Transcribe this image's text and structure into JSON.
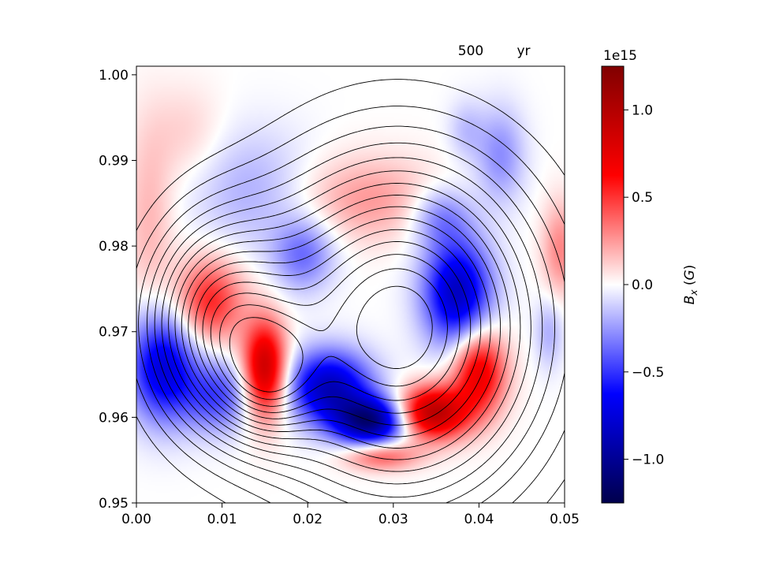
{
  "chart_data": {
    "type": "heatmap",
    "colormap": "seismic",
    "annotation_time": "500",
    "annotation_unit": "yr",
    "x": {
      "min": 0.0,
      "max": 0.05,
      "ticks": [
        0.0,
        0.01,
        0.02,
        0.03,
        0.04,
        0.05
      ],
      "tick_labels": [
        "0.00",
        "0.01",
        "0.02",
        "0.03",
        "0.04",
        "0.05"
      ]
    },
    "y": {
      "min": 0.95,
      "max": 1.001,
      "ticks": [
        0.95,
        0.96,
        0.97,
        0.98,
        0.99,
        1.0
      ],
      "tick_labels": [
        "0.95",
        "0.96",
        "0.97",
        "0.98",
        "0.99",
        "1.00"
      ]
    },
    "colorbar": {
      "label": "B_x (G)",
      "offset_text": "1e15",
      "min": -1.25,
      "max": 1.25,
      "ticks": [
        1.0,
        0.5,
        0.0,
        -0.5,
        -1.0
      ],
      "tick_labels": [
        "1.0",
        "0.5",
        "0.0",
        "−0.5",
        "−1.0"
      ]
    },
    "field_features": [
      {
        "x": 0.0015,
        "y": 0.983,
        "sx": 0.002,
        "sy": 0.008,
        "amp": 0.18
      },
      {
        "x": 0.006,
        "y": 0.993,
        "sx": 0.003,
        "sy": 0.004,
        "amp": 0.12
      },
      {
        "x": 0.0085,
        "y": 0.9735,
        "sx": 0.0028,
        "sy": 0.0035,
        "amp": 0.55
      },
      {
        "x": 0.015,
        "y": 0.9655,
        "sx": 0.0018,
        "sy": 0.004,
        "amp": 0.95
      },
      {
        "x": 0.003,
        "y": 0.966,
        "sx": 0.0028,
        "sy": 0.0045,
        "amp": -0.75
      },
      {
        "x": 0.0095,
        "y": 0.9625,
        "sx": 0.003,
        "sy": 0.003,
        "amp": -0.45
      },
      {
        "x": 0.0135,
        "y": 0.9865,
        "sx": 0.005,
        "sy": 0.005,
        "amp": -0.2
      },
      {
        "x": 0.0195,
        "y": 0.979,
        "sx": 0.0025,
        "sy": 0.003,
        "amp": -0.35
      },
      {
        "x": 0.0225,
        "y": 0.9635,
        "sx": 0.0035,
        "sy": 0.003,
        "amp": -0.85
      },
      {
        "x": 0.0275,
        "y": 0.9595,
        "sx": 0.003,
        "sy": 0.002,
        "amp": -1.05
      },
      {
        "x": 0.0375,
        "y": 0.9745,
        "sx": 0.0028,
        "sy": 0.0045,
        "amp": -0.85
      },
      {
        "x": 0.0355,
        "y": 0.9835,
        "sx": 0.0025,
        "sy": 0.0025,
        "amp": -0.3
      },
      {
        "x": 0.0345,
        "y": 0.9605,
        "sx": 0.003,
        "sy": 0.0022,
        "amp": 1.0
      },
      {
        "x": 0.04,
        "y": 0.9655,
        "sx": 0.0022,
        "sy": 0.0035,
        "amp": 0.75
      },
      {
        "x": 0.0285,
        "y": 0.9555,
        "sx": 0.003,
        "sy": 0.0012,
        "amp": 0.45
      },
      {
        "x": 0.027,
        "y": 0.9855,
        "sx": 0.006,
        "sy": 0.0035,
        "amp": 0.25
      },
      {
        "x": 0.0425,
        "y": 0.9905,
        "sx": 0.002,
        "sy": 0.004,
        "amp": -0.28
      },
      {
        "x": 0.0385,
        "y": 0.9935,
        "sx": 0.0015,
        "sy": 0.0025,
        "amp": -0.15
      },
      {
        "x": 0.0495,
        "y": 0.9795,
        "sx": 0.0015,
        "sy": 0.004,
        "amp": 0.3
      },
      {
        "x": 0.0482,
        "y": 0.97,
        "sx": 0.0012,
        "sy": 0.003,
        "amp": -0.2
      }
    ],
    "flux_centers": [
      {
        "x": 0.0305,
        "y": 0.9705,
        "sx": 0.0115,
        "sy": 0.0135,
        "w": 1.0
      },
      {
        "x": 0.0095,
        "y": 0.971,
        "sx": 0.006,
        "sy": 0.0085,
        "w": 0.62
      },
      {
        "x": 0.0155,
        "y": 0.9645,
        "sx": 0.004,
        "sy": 0.005,
        "w": 0.35
      }
    ],
    "contour_levels": [
      0.1,
      0.16,
      0.22,
      0.28,
      0.34,
      0.4,
      0.46,
      0.52,
      0.58,
      0.64,
      0.7,
      0.76,
      0.82,
      0.88,
      0.94
    ]
  }
}
